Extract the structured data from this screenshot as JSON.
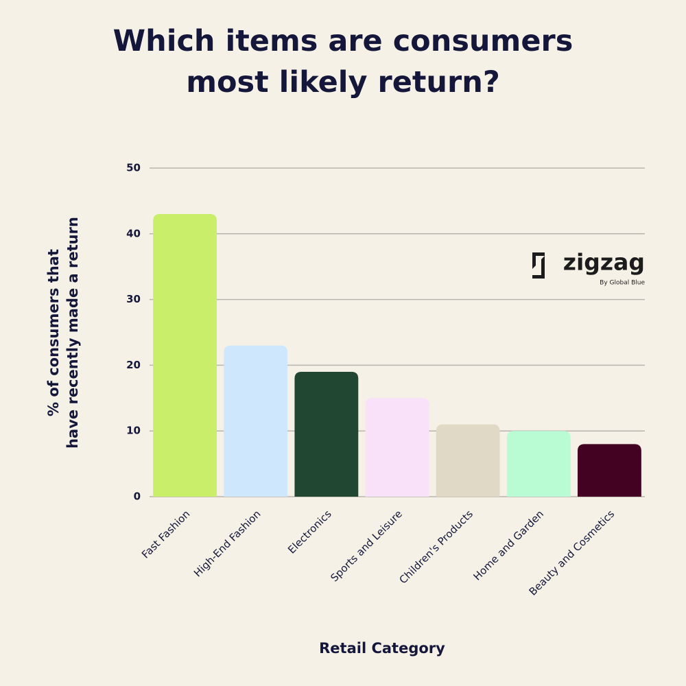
{
  "chart_data": {
    "type": "bar",
    "title": "Which items are consumers most likely return?",
    "categories": [
      "Fast Fashion",
      "High-End Fashion",
      "Electronics",
      "Sports and Leisure",
      "Children's Products",
      "Home and Garden",
      "Beauty and Cosmetics"
    ],
    "values": [
      43,
      23,
      19,
      15,
      11,
      10,
      8
    ],
    "colors": [
      "#c9ee6a",
      "#cfe7fc",
      "#214732",
      "#f8e1f9",
      "#e0d9c6",
      "#b9fcd4",
      "#440223"
    ],
    "xlabel": "Retail Category",
    "ylabel": "% of consumers that have recently made a return",
    "ylim": [
      0,
      50
    ],
    "yticks": [
      0,
      10,
      20,
      30,
      40,
      50
    ],
    "grid": true,
    "watermark": {
      "name": "zigzag",
      "tagline": "By Global Blue"
    }
  }
}
